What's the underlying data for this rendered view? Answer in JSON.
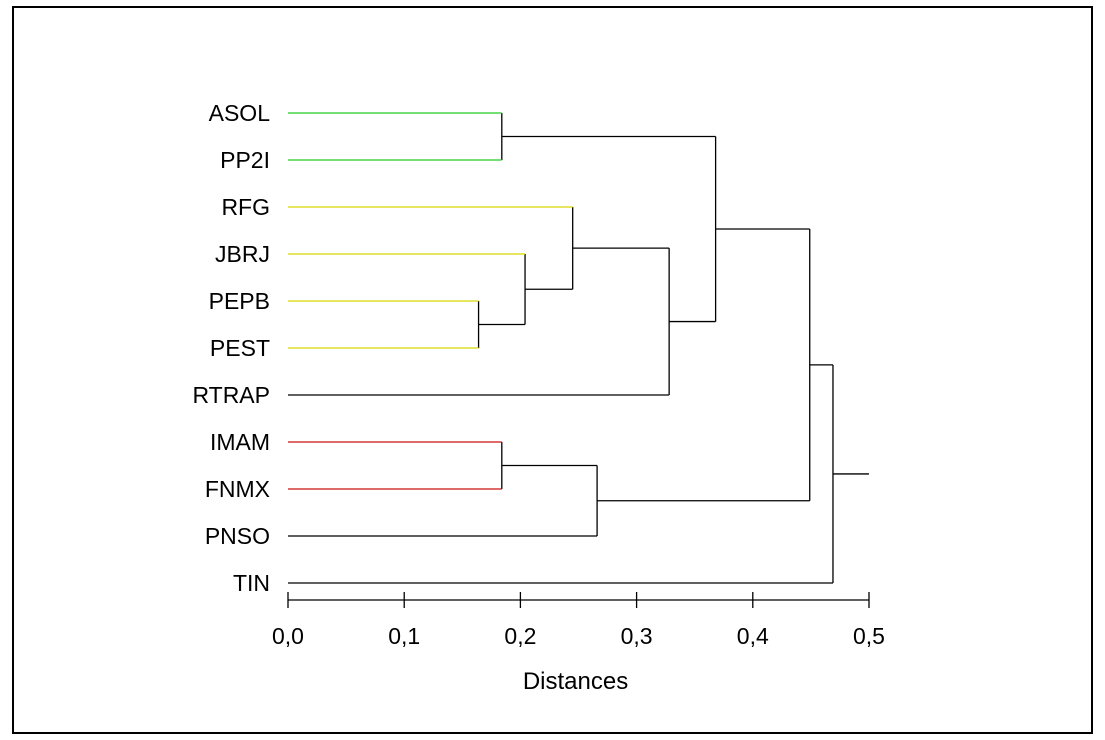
{
  "chart_data": {
    "type": "dendrogram",
    "orientation": "horizontal",
    "title": "",
    "xlabel": "Distances",
    "ylabel": "",
    "xlim": [
      0.0,
      0.5
    ],
    "ticks": [
      0.0,
      0.1,
      0.2,
      0.3,
      0.4,
      0.5
    ],
    "tick_labels": [
      "0,0",
      "0,1",
      "0,2",
      "0,3",
      "0,4",
      "0,5"
    ],
    "leaves": [
      {
        "label": "ASOL",
        "color": "#22cc22"
      },
      {
        "label": "PP2I",
        "color": "#22cc22"
      },
      {
        "label": "RFG",
        "color": "#d8d800"
      },
      {
        "label": "JBRJ",
        "color": "#d8d800"
      },
      {
        "label": "PEPB",
        "color": "#d8d800"
      },
      {
        "label": "PEST",
        "color": "#d8d800"
      },
      {
        "label": "RTRAP",
        "color": "#000000"
      },
      {
        "label": "IMAM",
        "color": "#cc1111"
      },
      {
        "label": "FNMX",
        "color": "#cc1111"
      },
      {
        "label": "PNSO",
        "color": "#000000"
      },
      {
        "label": "TIN",
        "color": "#000000"
      }
    ],
    "merges": [
      {
        "left": "ASOL",
        "right": "PP2I",
        "height": 0.184
      },
      {
        "left": "PEPB",
        "right": "PEST",
        "height": 0.164
      },
      {
        "left": "JBRJ",
        "right": "m2",
        "height": 0.204
      },
      {
        "left": "RFG",
        "right": "m3",
        "height": 0.245
      },
      {
        "left": "m4",
        "right": "RTRAP",
        "height": 0.328
      },
      {
        "left": "m1",
        "right": "m5",
        "height": 0.368
      },
      {
        "left": "IMAM",
        "right": "FNMX",
        "height": 0.184
      },
      {
        "left": "m7",
        "right": "PNSO",
        "height": 0.266
      },
      {
        "left": "m6",
        "right": "m8",
        "height": 0.449
      },
      {
        "left": "m9",
        "right": "TIN",
        "height": 0.469
      }
    ],
    "root_height": 0.5,
    "link_color": "#000000"
  }
}
